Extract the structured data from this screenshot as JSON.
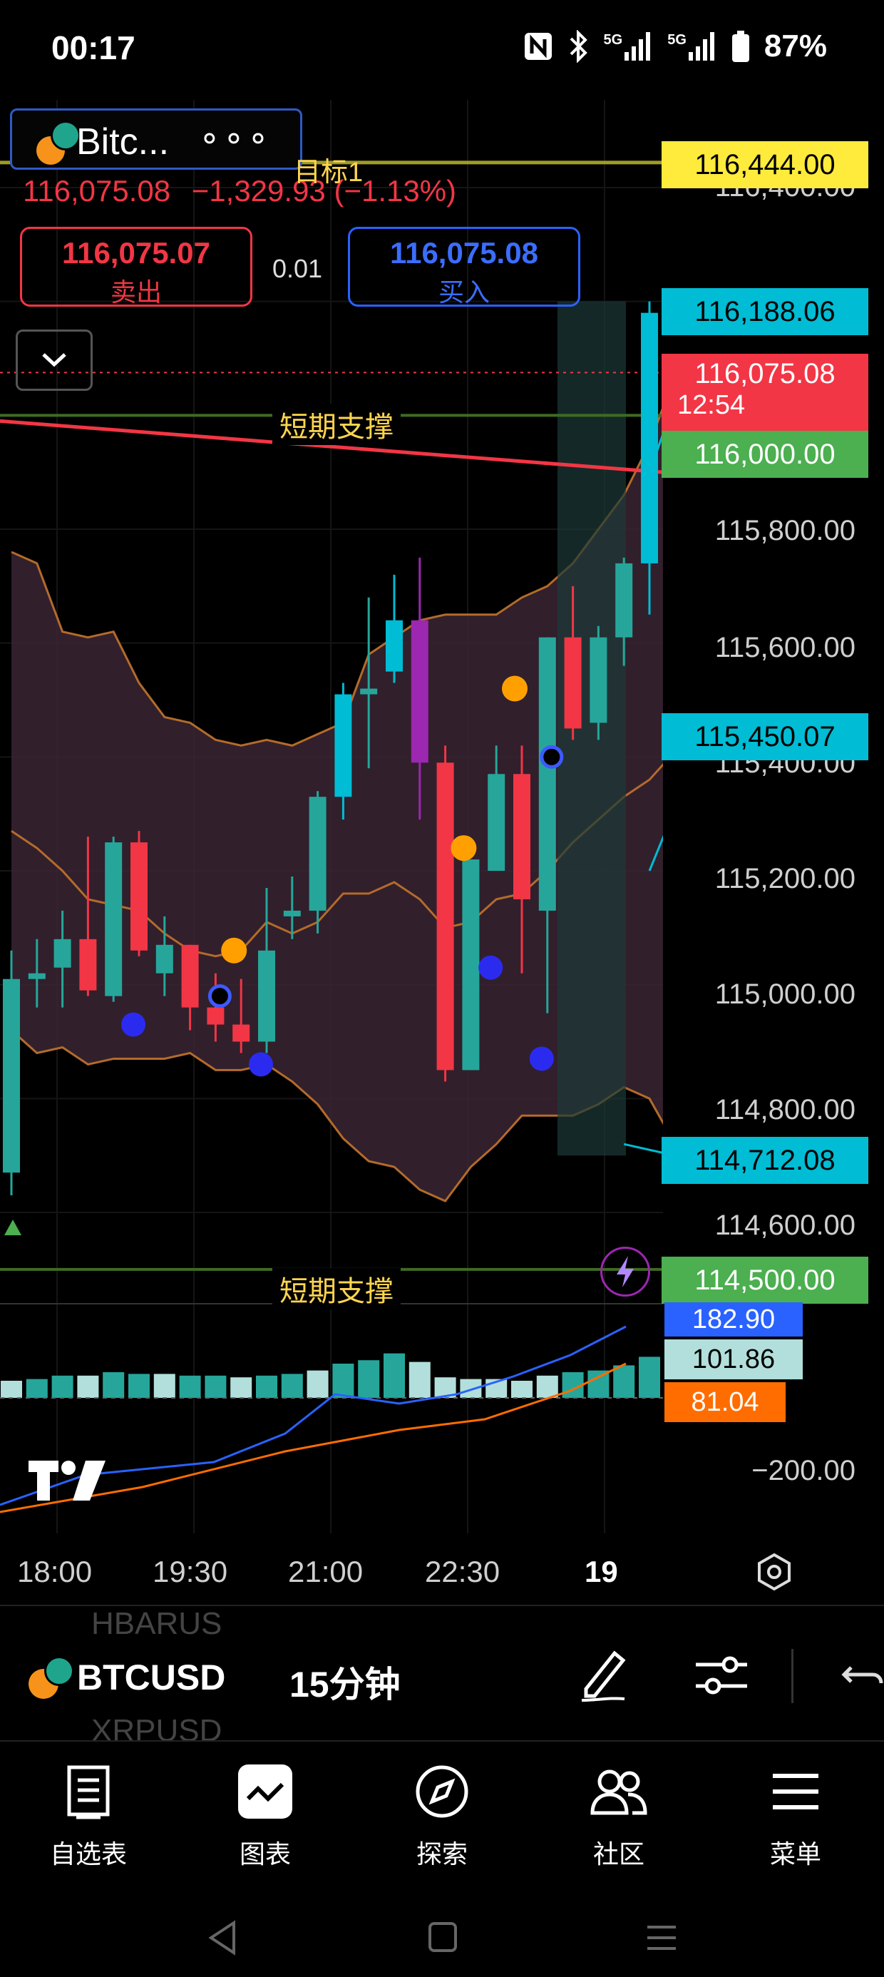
{
  "status_bar": {
    "time": "00:17",
    "icons": [
      "nfc-icon",
      "bluetooth-icon",
      "signal-5g-icon",
      "signal-5g-icon",
      "battery-icon"
    ],
    "net_label_1": "5G",
    "net_label_2": "5G",
    "battery": "87%"
  },
  "symbol_chip": {
    "label": "Bitc...",
    "more": "∘∘∘"
  },
  "quote": {
    "last": "116,075.08",
    "change": "−1,329.93",
    "change_pct": "(−1.13%)"
  },
  "trade": {
    "sell_price": "116,075.07",
    "sell_label": "卖出",
    "qty": "0.01",
    "buy_price": "116,075.08",
    "buy_label": "买入"
  },
  "annotations": {
    "target": "目标1",
    "support_1": "短期支撑",
    "support_2": "短期支撑"
  },
  "price_labels": {
    "target": "116,444.00",
    "upper_band": "116,188.06",
    "current": "116,075.08",
    "countdown": "12:54",
    "support_1": "116,000.00",
    "mid_band": "115,450.07",
    "lower_band": "114,712.08",
    "support_2": "114,500.00"
  },
  "price_axis": [
    "116,400.00",
    "115,800.00",
    "115,600.00",
    "115,400.00",
    "115,200.00",
    "115,000.00",
    "114,800.00",
    "114,600.00"
  ],
  "indicator_labels": {
    "v1": "182.90",
    "v2": "101.86",
    "v3": "81.04",
    "axis": "−200.00"
  },
  "time_axis": [
    "18:00",
    "19:30",
    "21:00",
    "22:30",
    "19"
  ],
  "colors": {
    "up": "#26a69a",
    "down": "#f23645",
    "cyan": "#00bcd4",
    "purple": "#9c27b0",
    "target": "#ffeb3b",
    "support": "#4caf50",
    "ma": "#f23645"
  },
  "chart_data": {
    "type": "candlestick",
    "ylim": [
      114500,
      116450
    ],
    "x": [
      "17:30",
      "17:45",
      "18:00",
      "18:15",
      "18:30",
      "18:45",
      "19:00",
      "19:15",
      "19:30",
      "19:45",
      "20:00",
      "20:15",
      "20:30",
      "20:45",
      "21:00",
      "21:15",
      "21:30",
      "21:45",
      "22:00",
      "22:15",
      "22:30",
      "22:45",
      "23:00",
      "23:15",
      "23:30",
      "23:45",
      "00:00",
      "00:15"
    ],
    "ohlc": [
      [
        114670,
        115060,
        114630,
        115010
      ],
      [
        115010,
        115080,
        114960,
        115020
      ],
      [
        115030,
        115130,
        114960,
        115080
      ],
      [
        115080,
        115260,
        114980,
        114990
      ],
      [
        114980,
        115260,
        114970,
        115250
      ],
      [
        115250,
        115270,
        115050,
        115060
      ],
      [
        115020,
        115120,
        114980,
        115070
      ],
      [
        115070,
        115070,
        114920,
        114960
      ],
      [
        114960,
        115020,
        114900,
        114930
      ],
      [
        114930,
        115010,
        114880,
        114900
      ],
      [
        114900,
        115170,
        114880,
        115060
      ],
      [
        115120,
        115190,
        115080,
        115130
      ],
      [
        115130,
        115340,
        115090,
        115330
      ],
      [
        115330,
        115530,
        115290,
        115510
      ],
      [
        115510,
        115680,
        115380,
        115520
      ],
      [
        115550,
        115720,
        115530,
        115640
      ],
      [
        115640,
        115750,
        115290,
        115390
      ],
      [
        115390,
        115420,
        114830,
        114850
      ],
      [
        114850,
        115220,
        114850,
        115220
      ],
      [
        115200,
        115420,
        115210,
        115370
      ],
      [
        115370,
        115420,
        115020,
        115150
      ],
      [
        115130,
        115610,
        114950,
        115610
      ],
      [
        115610,
        115700,
        115430,
        115450
      ],
      [
        115460,
        115630,
        115430,
        115610
      ],
      [
        115610,
        115750,
        115560,
        115740
      ],
      [
        115740,
        116200,
        115650,
        116180
      ],
      [
        116180,
        116350,
        116000,
        116120
      ],
      [
        116100,
        116190,
        116010,
        116090
      ]
    ],
    "bollinger": {
      "upper_start": 115760,
      "upper_end": 116188.06,
      "mid_end": 115450.07,
      "lower_end": 114712.08
    },
    "ma": [
      115990,
      115900
    ],
    "levels": [
      116444.0,
      116000.0,
      114500.0
    ],
    "volume": [
      1,
      1.1,
      1.3,
      1.3,
      1.5,
      1.4,
      1.4,
      1.3,
      1.3,
      1.2,
      1.3,
      1.4,
      1.6,
      2,
      2.2,
      2.6,
      2.1,
      1.2,
      1.1,
      1.1,
      1.0,
      1.3,
      1.5,
      1.6,
      1.9,
      2.4,
      2.4,
      2.6
    ]
  },
  "toolbar": {
    "symbol": "BTCUSD",
    "interval": "15分钟",
    "ghost_above": "HBARUS",
    "ghost_below": "XRPUSD"
  },
  "nav": [
    {
      "label": "自选表",
      "icon": "watchlist-icon"
    },
    {
      "label": "图表",
      "icon": "chart-icon"
    },
    {
      "label": "探索",
      "icon": "compass-icon"
    },
    {
      "label": "社区",
      "icon": "community-icon"
    },
    {
      "label": "菜单",
      "icon": "menu-icon"
    }
  ]
}
